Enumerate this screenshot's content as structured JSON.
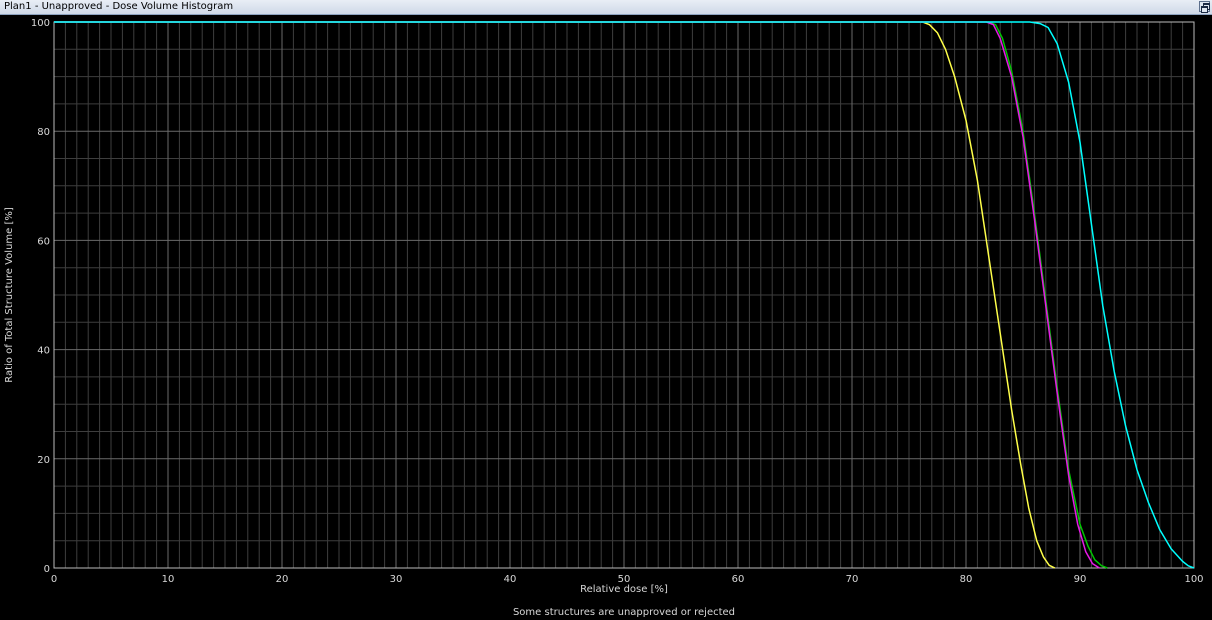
{
  "window": {
    "title": "Plan1 - Unapproved - Dose Volume Histogram",
    "restore_icon": "restore-window-icon"
  },
  "status_text": "Some structures are unapproved or rejected",
  "colors": {
    "background": "#000000",
    "grid": "#6a6a6a",
    "text": "#d8d8d8"
  },
  "chart_data": {
    "type": "line",
    "xlabel": "Relative dose [%]",
    "ylabel": "Ratio of Total Structure Volume [%]",
    "xlim": [
      0,
      100
    ],
    "ylim": [
      0,
      100
    ],
    "xticks": [
      0,
      10,
      20,
      30,
      40,
      50,
      60,
      70,
      80,
      90,
      100
    ],
    "yticks": [
      0,
      20,
      40,
      60,
      80,
      100
    ],
    "grid": true,
    "minor_x_step": 1,
    "minor_y_step": 5,
    "series": [
      {
        "color": "#ffff4a",
        "x": [
          0,
          76.2,
          76.8,
          77.5,
          78.2,
          79.0,
          80.0,
          81.0,
          82.0,
          83.0,
          84.0,
          84.8,
          85.5,
          86.2,
          86.8,
          87.3,
          87.8
        ],
        "y": [
          100,
          100,
          99.5,
          98,
          95,
          90,
          82,
          71,
          57,
          43,
          29,
          19,
          11,
          5,
          2,
          0.5,
          0
        ]
      },
      {
        "color": "#00c400",
        "x": [
          0,
          82.0,
          82.6,
          83.2,
          84.0,
          85.0,
          86.0,
          87.0,
          88.0,
          89.0,
          90.0,
          90.7,
          91.3,
          91.9,
          92.4
        ],
        "y": [
          100,
          100,
          99.5,
          97,
          91,
          80,
          65,
          49,
          33,
          18,
          8,
          4,
          1.5,
          0.4,
          0
        ]
      },
      {
        "color": "#e619e6",
        "x": [
          0,
          81.8,
          82.4,
          83.0,
          84.0,
          85.0,
          86.0,
          87.0,
          88.0,
          89.0,
          89.8,
          90.5,
          91.1,
          91.7
        ],
        "y": [
          100,
          100,
          99.5,
          97,
          90,
          79,
          64,
          48,
          32,
          17,
          8,
          3,
          0.8,
          0
        ]
      },
      {
        "color": "#00ffff",
        "x": [
          0,
          85.6,
          86.5,
          87.2,
          88.0,
          89.0,
          90.0,
          91.0,
          92.0,
          93.0,
          94.0,
          95.0,
          96.0,
          97.0,
          98.0,
          99.0,
          99.5,
          100
        ],
        "y": [
          100,
          100,
          99.7,
          99,
          96,
          89,
          78,
          63,
          48,
          36,
          26,
          18,
          12,
          7,
          3.5,
          1.2,
          0.4,
          0
        ]
      }
    ]
  }
}
